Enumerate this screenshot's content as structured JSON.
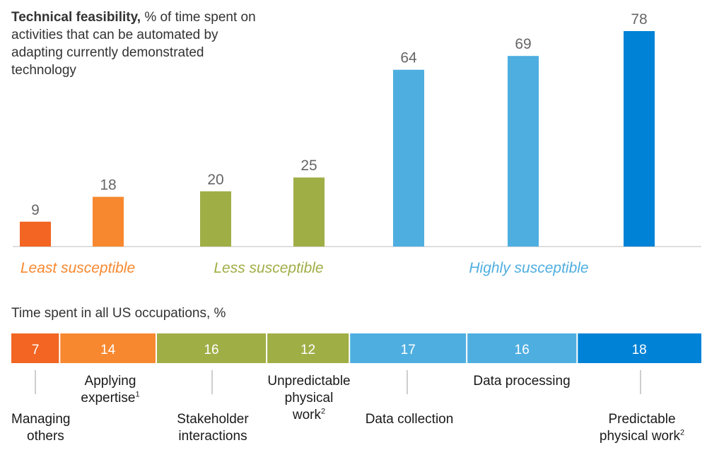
{
  "chart_data": [
    {
      "type": "bar",
      "title_bold": "Technical feasibility,",
      "title_rest": "% of time spent on activities that can be automated by adapting currently demonstrated technology",
      "categories": [
        "Managing others",
        "Applying expertise",
        "Stakeholder interactions",
        "Unpredictable physical work",
        "Data collection",
        "Data processing",
        "Predictable physical work"
      ],
      "values": [
        9,
        18,
        20,
        25,
        64,
        69,
        78
      ],
      "colors": [
        "#F26522",
        "#F7882F",
        "#A0AE46",
        "#A0AE46",
        "#4EAEE0",
        "#4EAEE0",
        "#0082D6"
      ],
      "ylim": [
        0,
        78
      ],
      "groups": [
        {
          "label": "Least susceptible",
          "color": "#F7882F"
        },
        {
          "label": "Less susceptible",
          "color": "#A0AE46"
        },
        {
          "label": "Highly susceptible",
          "color": "#4EAEE0"
        }
      ]
    },
    {
      "type": "stacked-bar",
      "title": "Time spent in all US occupations, %",
      "values": [
        7,
        14,
        16,
        12,
        17,
        16,
        18
      ],
      "colors": [
        "#F26522",
        "#F7882F",
        "#A0AE46",
        "#A0AE46",
        "#4EAEE0",
        "#4EAEE0",
        "#0082D6"
      ]
    }
  ],
  "labels": {
    "managing_1": "Managing",
    "managing_2": "others",
    "applying_1": "Applying",
    "applying_2": "expertise",
    "applying_sup": "1",
    "stakeholder_1": "Stakeholder",
    "stakeholder_2": "interactions",
    "unpredictable_1": "Unpredictable",
    "unpredictable_2": "physical",
    "unpredictable_3": "work",
    "unpredictable_sup": "2",
    "data_collection": "Data collection",
    "data_processing": "Data processing",
    "predictable_1": "Predictable",
    "predictable_2": "physical work",
    "predictable_sup": "2"
  }
}
